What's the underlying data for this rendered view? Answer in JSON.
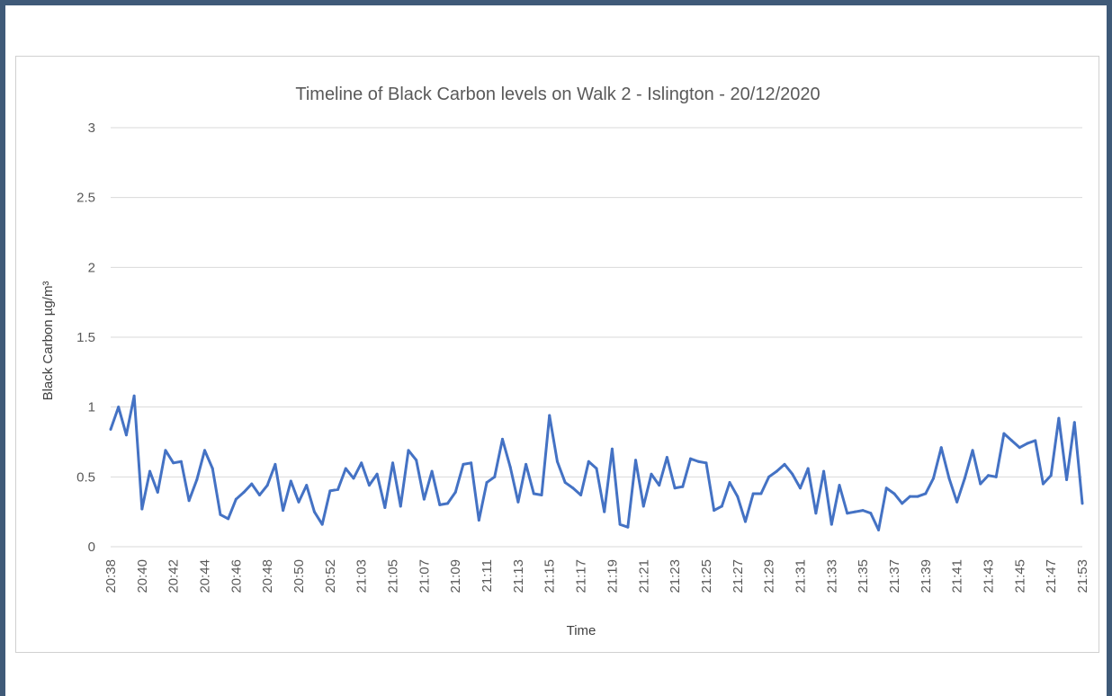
{
  "colors": {
    "frame": "#3f5a78",
    "line": "#4472c4",
    "grid": "#d9d9d9",
    "text": "#595959"
  },
  "chart_data": {
    "type": "line",
    "title": "Timeline of Black Carbon levels on Walk 2 - Islington - 20/12/2020",
    "xlabel": "Time",
    "ylabel": "Black Carbon µg/m³",
    "ylim": [
      0,
      3
    ],
    "y_ticks": [
      "0",
      "0.5",
      "1",
      "1.5",
      "2",
      "2.5",
      "3"
    ],
    "grid": "horizontal",
    "legend": "none",
    "x_tick_labels": [
      "20:38",
      "20:40",
      "20:42",
      "20:44",
      "20:46",
      "20:48",
      "20:50",
      "20:52",
      "21:03",
      "21:05",
      "21:07",
      "21:09",
      "21:11",
      "21:13",
      "21:15",
      "21:17",
      "21:19",
      "21:21",
      "21:23",
      "21:25",
      "21:27",
      "21:29",
      "21:31",
      "21:33",
      "21:35",
      "21:37",
      "21:39",
      "21:41",
      "21:43",
      "21:45",
      "21:47",
      "21:53"
    ],
    "series": [
      {
        "values": [
          0.84,
          1.0,
          0.8,
          1.08,
          0.27,
          0.54,
          0.39,
          0.69,
          0.6,
          0.61,
          0.33,
          0.48,
          0.69,
          0.56,
          0.23,
          0.2,
          0.34,
          0.39,
          0.45,
          0.37,
          0.44,
          0.59,
          0.26,
          0.47,
          0.32,
          0.44,
          0.25,
          0.16,
          0.4,
          0.41,
          0.56,
          0.49,
          0.6,
          0.44,
          0.52,
          0.28,
          0.6,
          0.29,
          0.69,
          0.62,
          0.34,
          0.54,
          0.3,
          0.31,
          0.39,
          0.59,
          0.6,
          0.19,
          0.46,
          0.5,
          0.77,
          0.57,
          0.32,
          0.59,
          0.38,
          0.37,
          0.94,
          0.61,
          0.46,
          0.42,
          0.37,
          0.61,
          0.56,
          0.25,
          0.7,
          0.16,
          0.14,
          0.62,
          0.29,
          0.52,
          0.44,
          0.64,
          0.42,
          0.43,
          0.63,
          0.61,
          0.6,
          0.26,
          0.29,
          0.46,
          0.36,
          0.18,
          0.38,
          0.38,
          0.5,
          0.54,
          0.59,
          0.52,
          0.42,
          0.56,
          0.24,
          0.54,
          0.16,
          0.44,
          0.24,
          0.25,
          0.26,
          0.24,
          0.12,
          0.42,
          0.38,
          0.31,
          0.36,
          0.36,
          0.38,
          0.49,
          0.71,
          0.49,
          0.32,
          0.49,
          0.69,
          0.45,
          0.51,
          0.5,
          0.81,
          0.76,
          0.71,
          0.74,
          0.76,
          0.45,
          0.51,
          0.92,
          0.48,
          0.89,
          0.31
        ]
      }
    ]
  }
}
